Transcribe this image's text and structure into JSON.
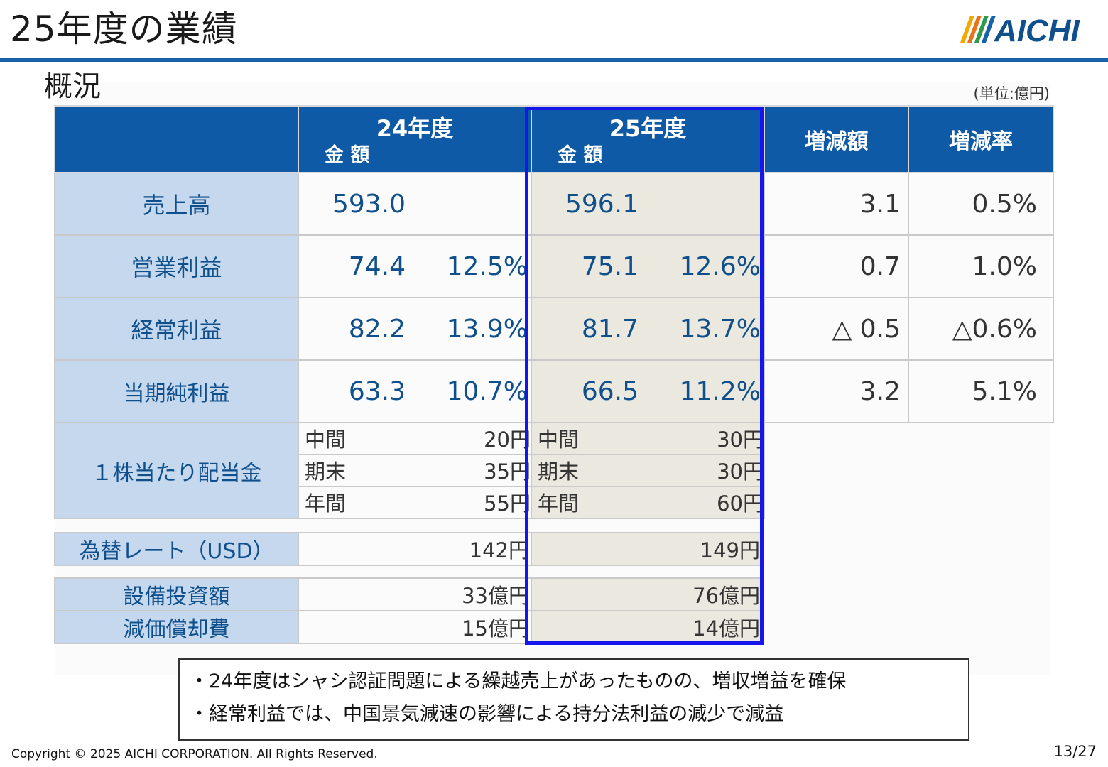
{
  "header": {
    "title": "25年度の業績",
    "subtitle": "概況",
    "unit": "(単位:億円)",
    "logo_text": "AICHI"
  },
  "colors": {
    "header_blue": "#0e5aa6",
    "label_bg": "#c6d8ee",
    "highlight_bg": "#ebe9df",
    "highlight_border": "#1515ee",
    "accent_rule": "#1662a8"
  },
  "table": {
    "col_24": "24年度",
    "col_25": "25年度",
    "amount_label": "金 額",
    "col_change": "増減額",
    "col_rate": "増減率",
    "rows": [
      {
        "label": "売上高",
        "v24": "593.0",
        "p24": "",
        "v25": "596.1",
        "p25": "",
        "chg": "3.1",
        "rate": "0.5%"
      },
      {
        "label": "営業利益",
        "v24": "74.4",
        "p24": "12.5%",
        "v25": "75.1",
        "p25": "12.6%",
        "chg": "0.7",
        "rate": "1.0%"
      },
      {
        "label": "経常利益",
        "v24": "82.2",
        "p24": "13.9%",
        "v25": "81.7",
        "p25": "13.7%",
        "chg": "△ 0.5",
        "rate": "△0.6%"
      },
      {
        "label": "当期純利益",
        "v24": "63.3",
        "p24": "10.7%",
        "v25": "66.5",
        "p25": "11.2%",
        "chg": "3.2",
        "rate": "5.1%"
      }
    ],
    "dividend": {
      "label": "１株当たり配当金",
      "rows": [
        {
          "period": "中間",
          "d24": "20円",
          "d25": "30円"
        },
        {
          "period": "期末",
          "d24": "35円",
          "d25": "30円"
        },
        {
          "period": "年間",
          "d24": "55円",
          "d25": "60円"
        }
      ]
    },
    "fx": {
      "label": "為替レート（USD）",
      "v24": "142円",
      "v25": "149円"
    },
    "capex": {
      "label": "設備投資額",
      "v24": "33億円",
      "v25": "76億円"
    },
    "depr": {
      "label": "減価償却費",
      "v24": "15億円",
      "v25": "14億円"
    }
  },
  "notes": [
    "・24年度はシャシ認証問題による繰越売上があったものの、増収増益を確保",
    "・経常利益では、中国景気減速の影響による持分法利益の減少で減益"
  ],
  "footer": {
    "copyright": "Copyright © 2025  AICHI CORPORATION. All Rights Reserved.",
    "page": "13/27"
  }
}
